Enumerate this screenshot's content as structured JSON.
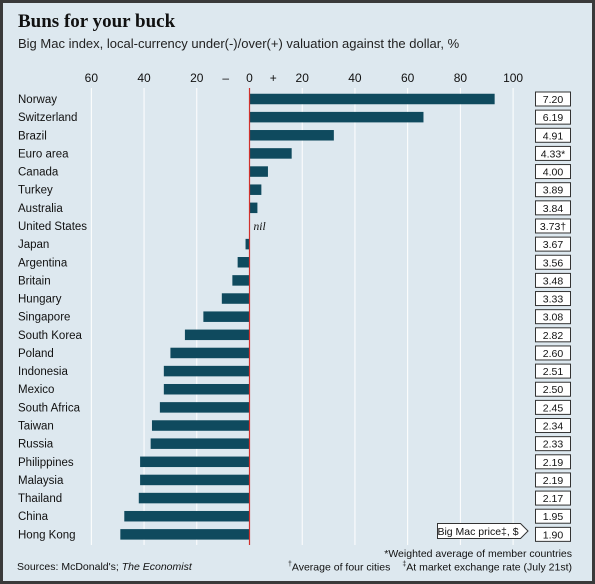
{
  "title": "Buns for your buck",
  "subtitle": "Big Mac index, local-currency under(-)/over(+) valuation against the dollar, %",
  "source_label": "Sources: McDonald's;",
  "source_pub": "The Economist",
  "notes": {
    "weighted": "*Weighted average of member countries",
    "four_cities": "Average of four cities",
    "exchange_rate": "At market exchange rate (July 21st)"
  },
  "colors": {
    "bar": "#0f4a5e",
    "zero_line": "#d0312d",
    "background": "#dde8ef",
    "grid": "#ffffff"
  },
  "chart_data": {
    "type": "bar",
    "orientation": "horizontal",
    "title": "Buns for your buck",
    "subtitle": "Big Mac index, local-currency under(-)/over(+) valuation against the dollar, %",
    "xlim": [
      -60,
      100
    ],
    "x_ticks": [
      "60",
      "40",
      "20",
      "–",
      "0",
      "+",
      "20",
      "40",
      "60",
      "80",
      "100"
    ],
    "grid": true,
    "price_header": "Big Mac price‡, $",
    "nil_label": "nil",
    "categories": [
      "Norway",
      "Switzerland",
      "Brazil",
      "Euro area",
      "Canada",
      "Turkey",
      "Australia",
      "United States",
      "Japan",
      "Argentina",
      "Britain",
      "Hungary",
      "Singapore",
      "South Korea",
      "Poland",
      "Indonesia",
      "Mexico",
      "South Africa",
      "Taiwan",
      "Russia",
      "Philippines",
      "Malaysia",
      "Thailand",
      "China",
      "Hong Kong"
    ],
    "values": [
      93,
      66,
      32,
      16,
      7,
      4.5,
      3,
      0,
      -1.5,
      -4.5,
      -6.5,
      -10.5,
      -17.5,
      -24.5,
      -30,
      -32.5,
      -32.5,
      -34,
      -37,
      -37.5,
      -41.5,
      -41.5,
      -42,
      -47.5,
      -49
    ],
    "prices": [
      "7.20",
      "6.19",
      "4.91",
      "4.33*",
      "4.00",
      "3.89",
      "3.84",
      "3.73†",
      "3.67",
      "3.56",
      "3.48",
      "3.33",
      "3.08",
      "2.82",
      "2.60",
      "2.51",
      "2.50",
      "2.45",
      "2.34",
      "2.33",
      "2.19",
      "2.19",
      "2.17",
      "1.95",
      "1.90"
    ]
  }
}
